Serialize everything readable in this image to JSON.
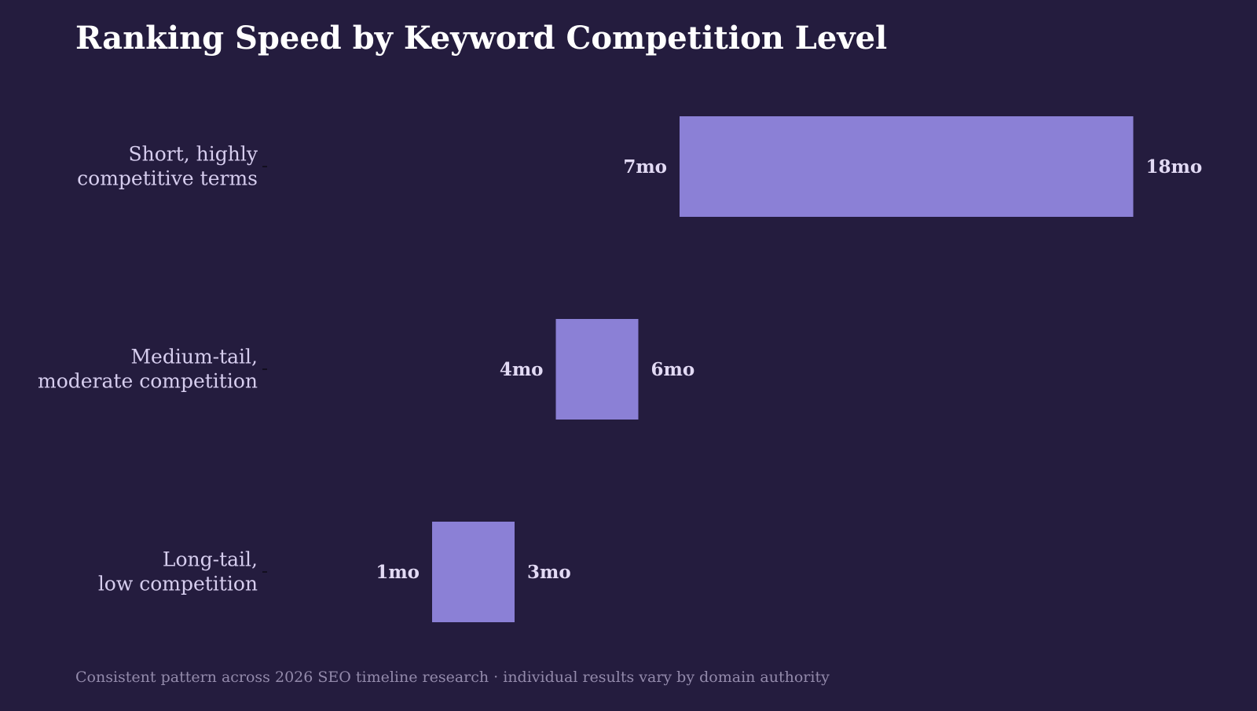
{
  "colors": {
    "background": "#241c3e",
    "bar": "#8b80d6",
    "title": "#ffffff",
    "category_text": "#d6cdee",
    "value_text": "#e2daf4",
    "footnote_text": "#938aab"
  },
  "footnote": "Consistent pattern across 2026 SEO timeline research · individual results vary by domain authority",
  "chart_data": {
    "type": "bar",
    "orientation": "horizontal-range",
    "title": "Ranking Speed by Keyword Competition Level",
    "xlabel": "",
    "ylabel": "",
    "grid": false,
    "legend": "none",
    "xlim": [
      -3,
      21
    ],
    "unit_suffix": "mo",
    "categories": [
      [
        "Short, highly",
        "competitive terms"
      ],
      [
        "Medium-tail,",
        "moderate competition"
      ],
      [
        "Long-tail,",
        "low competition"
      ]
    ],
    "ranges": [
      {
        "start": 7,
        "end": 18,
        "start_label": "7mo",
        "end_label": "18mo"
      },
      {
        "start": 4,
        "end": 6,
        "start_label": "4mo",
        "end_label": "6mo"
      },
      {
        "start": 1,
        "end": 3,
        "start_label": "1mo",
        "end_label": "3mo"
      }
    ]
  }
}
